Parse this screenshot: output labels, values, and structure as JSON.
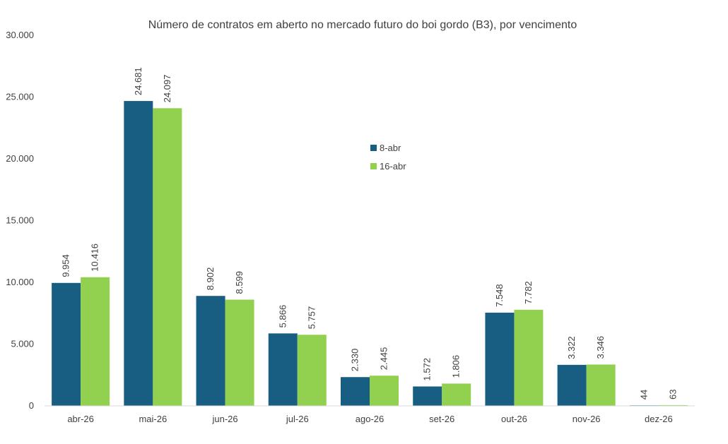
{
  "chart_data": {
    "type": "bar",
    "title": "Número de contratos em aberto no mercado futuro do boi gordo (B3), por vencimento",
    "xlabel": "",
    "ylabel": "",
    "ylim": [
      0,
      30000
    ],
    "yticks": [
      0,
      5000,
      10000,
      15000,
      20000,
      25000,
      30000
    ],
    "ytick_labels": [
      "0",
      "5.000",
      "10.000",
      "15.000",
      "20.000",
      "25.000",
      "30.000"
    ],
    "categories": [
      "abr-26",
      "mai-26",
      "jun-26",
      "jul-26",
      "ago-26",
      "set-26",
      "out-26",
      "nov-26",
      "dez-26"
    ],
    "series": [
      {
        "name": "8-abr",
        "color": "#185E83",
        "values": [
          9954,
          24681,
          8902,
          5866,
          2330,
          1572,
          7548,
          3322,
          44
        ],
        "labels": [
          "9.954",
          "24.681",
          "8.902",
          "5.866",
          "2.330",
          "1.572",
          "7.548",
          "3.322",
          "44"
        ]
      },
      {
        "name": "16-abr",
        "color": "#92D050",
        "values": [
          10416,
          24097,
          8599,
          5757,
          2445,
          1806,
          7782,
          3346,
          63
        ],
        "labels": [
          "10.416",
          "24.097",
          "8.599",
          "5.757",
          "2.445",
          "1.806",
          "7.782",
          "3.346",
          "63"
        ]
      }
    ],
    "legend_position": "upper-center",
    "grid": false
  }
}
